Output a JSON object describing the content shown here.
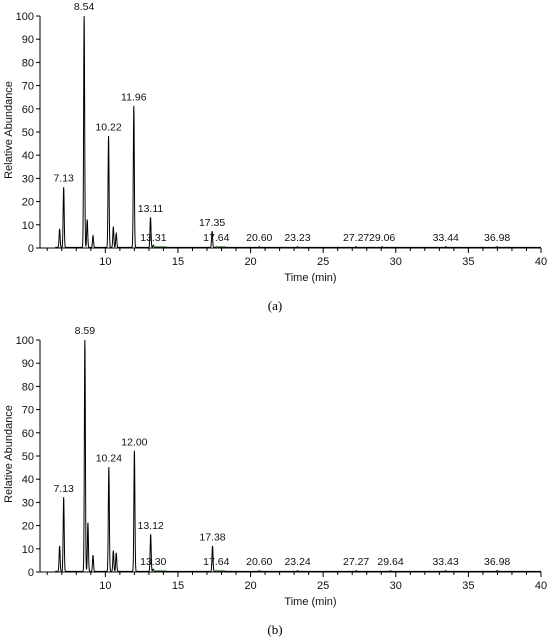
{
  "chart_data": [
    {
      "type": "line",
      "caption": "(a)",
      "xlabel": "Time (min)",
      "ylabel": "Relative Abundance",
      "xlim": [
        5.5,
        40
      ],
      "ylim": [
        0,
        100
      ],
      "xticks": [
        10,
        15,
        20,
        25,
        30,
        35,
        40
      ],
      "yticks": [
        0,
        10,
        20,
        30,
        40,
        50,
        60,
        70,
        80,
        90,
        100
      ],
      "grid": false,
      "peaks": [
        {
          "x": 6.85,
          "y": 8
        },
        {
          "x": 7.13,
          "y": 26,
          "label": "7.13"
        },
        {
          "x": 8.54,
          "y": 100,
          "label": "8.54"
        },
        {
          "x": 8.75,
          "y": 12
        },
        {
          "x": 9.15,
          "y": 5
        },
        {
          "x": 10.22,
          "y": 48,
          "label": "10.22"
        },
        {
          "x": 10.55,
          "y": 9
        },
        {
          "x": 10.75,
          "y": 6
        },
        {
          "x": 11.96,
          "y": 61,
          "label": "11.96"
        },
        {
          "x": 13.11,
          "y": 13,
          "label": "13.11"
        },
        {
          "x": 13.31,
          "y": 1,
          "label": "13.31"
        },
        {
          "x": 17.35,
          "y": 7,
          "label": "17.35"
        },
        {
          "x": 17.64,
          "y": 0.5,
          "label": "17.64"
        },
        {
          "x": 20.6,
          "y": 0.3,
          "label": "20.60"
        },
        {
          "x": 23.23,
          "y": 0.3,
          "label": "23.23"
        },
        {
          "x": 27.27,
          "y": 0.3,
          "label": "27.27"
        },
        {
          "x": 29.06,
          "y": 0.3,
          "label": "29.06"
        },
        {
          "x": 33.44,
          "y": 0.3,
          "label": "33.44"
        },
        {
          "x": 36.98,
          "y": 0.3,
          "label": "36.98"
        }
      ]
    },
    {
      "type": "line",
      "caption": "(b)",
      "xlabel": "Time (min)",
      "ylabel": "Relative Abundance",
      "xlim": [
        5.5,
        40
      ],
      "ylim": [
        0,
        100
      ],
      "xticks": [
        10,
        15,
        20,
        25,
        30,
        35,
        40
      ],
      "yticks": [
        0,
        10,
        20,
        30,
        40,
        50,
        60,
        70,
        80,
        90,
        100
      ],
      "grid": false,
      "peaks": [
        {
          "x": 6.85,
          "y": 11
        },
        {
          "x": 7.13,
          "y": 32,
          "label": "7.13"
        },
        {
          "x": 8.59,
          "y": 100,
          "label": "8.59"
        },
        {
          "x": 8.8,
          "y": 21
        },
        {
          "x": 9.15,
          "y": 7
        },
        {
          "x": 10.24,
          "y": 45,
          "label": "10.24"
        },
        {
          "x": 10.55,
          "y": 9
        },
        {
          "x": 10.75,
          "y": 8
        },
        {
          "x": 12.0,
          "y": 52,
          "label": "12.00"
        },
        {
          "x": 13.12,
          "y": 16,
          "label": "13.12"
        },
        {
          "x": 13.3,
          "y": 1,
          "label": "13.30"
        },
        {
          "x": 17.38,
          "y": 11,
          "label": "17.38"
        },
        {
          "x": 17.64,
          "y": 0.5,
          "label": "17.64"
        },
        {
          "x": 20.6,
          "y": 0.3,
          "label": "20.60"
        },
        {
          "x": 23.24,
          "y": 0.3,
          "label": "23.24"
        },
        {
          "x": 27.27,
          "y": 0.3,
          "label": "27.27"
        },
        {
          "x": 29.64,
          "y": 0.3,
          "label": "29.64"
        },
        {
          "x": 33.43,
          "y": 0.3,
          "label": "33.43"
        },
        {
          "x": 36.98,
          "y": 0.3,
          "label": "36.98"
        }
      ]
    }
  ]
}
